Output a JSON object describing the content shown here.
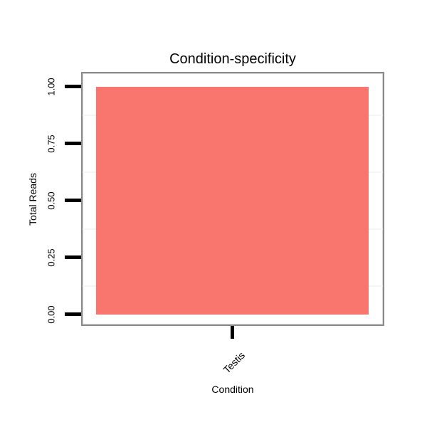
{
  "chart_data": {
    "type": "bar",
    "title": "Condition-specificity",
    "xlabel": "Condition",
    "ylabel": "Total Reads",
    "categories": [
      "Testis"
    ],
    "values": [
      1.0
    ],
    "ylim": [
      0,
      1.0
    ],
    "ytick_labels": [
      "0.00",
      "0.25",
      "0.50",
      "0.75",
      "1.00"
    ],
    "ytick_values": [
      0,
      0.25,
      0.5,
      0.75,
      1.0
    ],
    "minor_grid_values": [
      0.125,
      0.375,
      0.625,
      0.875
    ],
    "grid": "minor-horizontal-only",
    "legend": "none",
    "bar_color": "#F8766D",
    "panel_border_color": "#8A8A8A",
    "grid_color": "#F4F4F4",
    "tick_color": "#000000",
    "text_color": "#000000",
    "background_color": "#FFFFFF"
  }
}
